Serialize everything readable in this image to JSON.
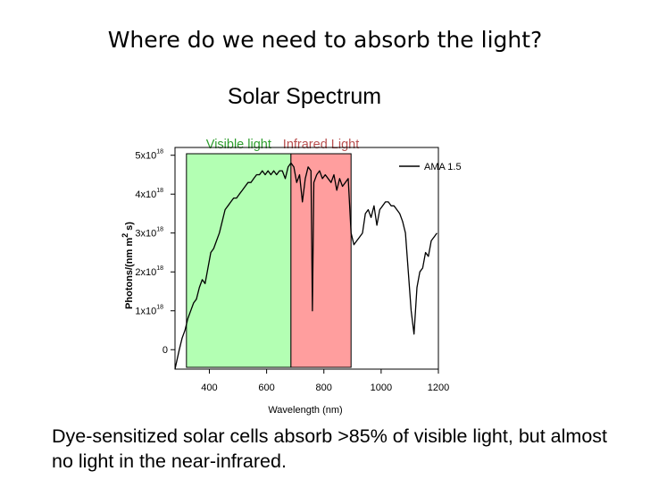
{
  "slide": {
    "title": "Where do we need to absorb the light?",
    "caption": "Dye-sensitized solar cells absorb >85% of visible light, but almost no light in the near-infrared."
  },
  "chart_data": {
    "type": "line",
    "title": "Solar Spectrum",
    "xlabel": "Wavelength (nm)",
    "ylabel": {
      "base": "Photons/(nm m",
      "sup": "2",
      "tail": " s)"
    },
    "xlim": [
      280,
      1200
    ],
    "ylim": [
      -0.5,
      5.2
    ],
    "x_ticks": [
      400,
      600,
      800,
      1000,
      1200
    ],
    "y_ticks": [
      {
        "value": 0,
        "label": "0",
        "exp": ""
      },
      {
        "value": 1,
        "label": "1x10",
        "exp": "18"
      },
      {
        "value": 2,
        "label": "2x10",
        "exp": "18"
      },
      {
        "value": 3,
        "label": "3x10",
        "exp": "18"
      },
      {
        "value": 4,
        "label": "4x10",
        "exp": "18"
      },
      {
        "value": 5,
        "label": "5x10",
        "exp": "18"
      }
    ],
    "y_unit_exponent": 18,
    "legend": {
      "position": "top-right",
      "entries": [
        "AMA 1.5"
      ]
    },
    "regions": [
      {
        "label": "Visible light",
        "x_start": 320,
        "x_end": 685,
        "color": "#b3ffb3",
        "label_color": "#2e9e2e"
      },
      {
        "label": "Infrared Light",
        "x_start": 685,
        "x_end": 895,
        "color": "#ff9e9e",
        "label_color": "#b95050"
      }
    ],
    "series": [
      {
        "name": "AMA 1.5",
        "color": "#000000",
        "x": [
          280,
          295,
          305,
          315,
          325,
          335,
          345,
          355,
          365,
          375,
          385,
          395,
          405,
          415,
          425,
          435,
          445,
          455,
          465,
          475,
          485,
          495,
          505,
          515,
          525,
          535,
          545,
          555,
          565,
          575,
          585,
          595,
          605,
          615,
          625,
          635,
          645,
          655,
          665,
          675,
          685,
          695,
          705,
          715,
          725,
          735,
          745,
          755,
          760,
          765,
          775,
          785,
          795,
          805,
          815,
          825,
          835,
          845,
          855,
          865,
          875,
          885,
          895,
          905,
          915,
          925,
          935,
          945,
          955,
          965,
          975,
          985,
          995,
          1005,
          1015,
          1025,
          1035,
          1045,
          1055,
          1065,
          1075,
          1085,
          1095,
          1105,
          1115,
          1125,
          1135,
          1145,
          1155,
          1165,
          1175,
          1185,
          1195
        ],
        "y": [
          -0.5,
          0.0,
          0.3,
          0.5,
          0.8,
          1.0,
          1.2,
          1.3,
          1.6,
          1.8,
          1.7,
          2.1,
          2.5,
          2.6,
          2.8,
          3.0,
          3.3,
          3.6,
          3.7,
          3.8,
          3.9,
          3.9,
          4.0,
          4.1,
          4.2,
          4.3,
          4.3,
          4.4,
          4.5,
          4.5,
          4.6,
          4.5,
          4.6,
          4.5,
          4.6,
          4.5,
          4.6,
          4.6,
          4.4,
          4.7,
          4.8,
          4.7,
          4.3,
          4.5,
          3.8,
          4.4,
          4.7,
          4.6,
          1.0,
          4.3,
          4.5,
          4.6,
          4.4,
          4.5,
          4.4,
          4.3,
          4.5,
          4.1,
          4.4,
          4.2,
          4.3,
          4.4,
          3.0,
          2.7,
          2.8,
          2.9,
          3.0,
          3.5,
          3.6,
          3.4,
          3.7,
          3.2,
          3.6,
          3.7,
          3.8,
          3.8,
          3.7,
          3.7,
          3.6,
          3.5,
          3.3,
          3.0,
          2.0,
          1.0,
          0.4,
          1.6,
          2.0,
          2.1,
          2.5,
          2.4,
          2.8,
          2.9,
          3.0
        ]
      }
    ]
  }
}
